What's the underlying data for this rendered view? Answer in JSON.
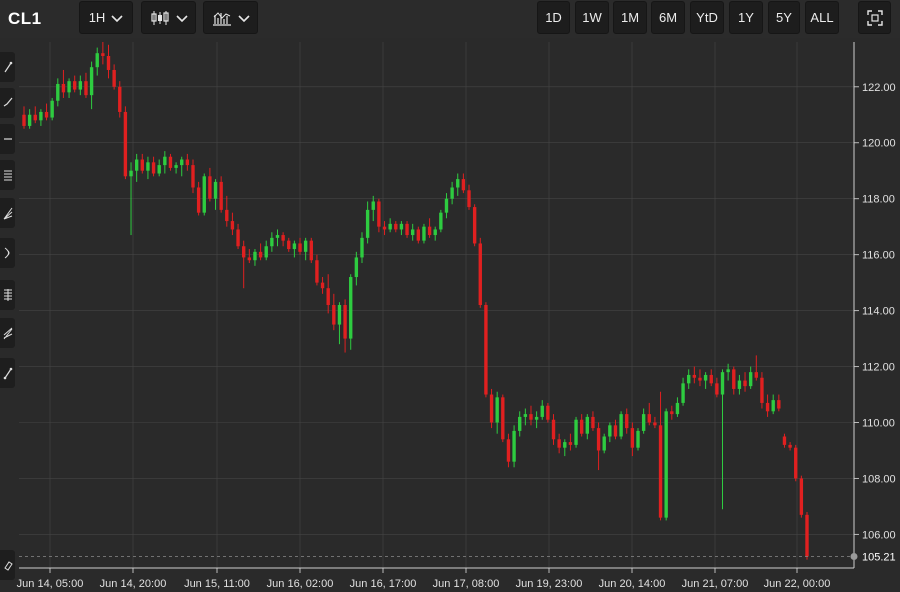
{
  "header": {
    "symbol": "CL1",
    "interval": "1H",
    "chart_type_icon": "candlestick-icon",
    "indicators_icon": "indicators-icon",
    "ranges": [
      "1D",
      "1W",
      "1M",
      "6M",
      "YtD",
      "1Y",
      "5Y",
      "ALL"
    ],
    "fullscreen_icon": "fullscreen-icon"
  },
  "sidebar": {
    "tools": [
      "line-tool-icon",
      "ray-tool-icon",
      "horizontal-line-icon",
      "pitchfork-icon",
      "fib-fan-icon",
      "arc-icon",
      "fib-retracement-icon",
      "fib-extension-icon",
      "fib-time-icon",
      "eraser-icon"
    ]
  },
  "colors": {
    "background": "#2a2a2a",
    "up": "#2ecc40",
    "down": "#e02020",
    "grid": "#454545",
    "last_price_line": "#8a8a8a"
  },
  "chart_data": {
    "type": "candlestick",
    "symbol": "CL1",
    "interval": "1H",
    "ylim": [
      104.8,
      123.6
    ],
    "y_ticks": [
      106,
      108,
      110,
      112,
      114,
      116,
      118,
      120,
      122
    ],
    "y_tick_labels": [
      "106.00",
      "108.00",
      "110.00",
      "112.00",
      "114.00",
      "116.00",
      "118.00",
      "120.00",
      "122.00"
    ],
    "x_tick_labels": [
      "Jun 14, 05:00",
      "Jun 14, 20:00",
      "Jun 15, 11:00",
      "Jun 16, 02:00",
      "Jun 16, 17:00",
      "Jun 17, 08:00",
      "Jun 19, 23:00",
      "Jun 20, 14:00",
      "Jun 21, 07:00",
      "Jun 22, 00:00"
    ],
    "last_price": 105.21,
    "last_price_label": "105.21",
    "grid": true,
    "candles": [
      [
        121.0,
        121.3,
        120.5,
        120.6
      ],
      [
        120.6,
        121.2,
        120.5,
        121.0
      ],
      [
        121.0,
        121.3,
        120.7,
        120.8
      ],
      [
        120.8,
        121.2,
        120.6,
        121.1
      ],
      [
        121.1,
        121.4,
        120.8,
        120.9
      ],
      [
        120.9,
        121.6,
        120.8,
        121.5
      ],
      [
        121.5,
        122.3,
        121.3,
        122.1
      ],
      [
        122.1,
        122.6,
        121.6,
        121.8
      ],
      [
        121.8,
        122.3,
        121.6,
        122.2
      ],
      [
        122.2,
        122.4,
        121.8,
        121.9
      ],
      [
        121.9,
        122.4,
        121.7,
        122.2
      ],
      [
        122.2,
        122.5,
        121.6,
        121.7
      ],
      [
        121.7,
        122.9,
        121.2,
        122.7
      ],
      [
        122.7,
        123.4,
        122.4,
        123.2
      ],
      [
        123.2,
        123.6,
        122.8,
        123.1
      ],
      [
        123.1,
        123.5,
        122.3,
        122.6
      ],
      [
        122.6,
        122.8,
        121.9,
        122.0
      ],
      [
        122.0,
        122.2,
        120.9,
        121.1
      ],
      [
        121.1,
        121.3,
        118.7,
        118.8
      ],
      [
        118.8,
        119.3,
        116.7,
        119.0
      ],
      [
        119.0,
        119.6,
        118.6,
        119.4
      ],
      [
        119.4,
        119.6,
        118.9,
        119.0
      ],
      [
        119.0,
        119.5,
        118.7,
        119.3
      ],
      [
        119.3,
        119.5,
        118.8,
        118.9
      ],
      [
        118.9,
        119.4,
        118.8,
        119.2
      ],
      [
        119.2,
        119.7,
        118.9,
        119.5
      ],
      [
        119.5,
        119.6,
        119.0,
        119.1
      ],
      [
        119.1,
        119.3,
        118.9,
        119.2
      ],
      [
        119.2,
        119.5,
        118.8,
        119.4
      ],
      [
        119.4,
        119.6,
        119.0,
        119.2
      ],
      [
        119.2,
        119.4,
        118.2,
        118.4
      ],
      [
        118.4,
        118.6,
        117.4,
        117.5
      ],
      [
        117.5,
        118.9,
        117.4,
        118.8
      ],
      [
        118.8,
        119.1,
        117.9,
        118.0
      ],
      [
        118.0,
        118.7,
        117.6,
        118.6
      ],
      [
        118.6,
        118.8,
        117.5,
        117.6
      ],
      [
        117.6,
        118.1,
        117.0,
        117.2
      ],
      [
        117.2,
        117.5,
        116.7,
        116.9
      ],
      [
        116.9,
        117.1,
        116.2,
        116.3
      ],
      [
        116.3,
        116.5,
        114.8,
        115.9
      ],
      [
        115.9,
        116.2,
        115.7,
        115.8
      ],
      [
        115.8,
        116.2,
        115.6,
        116.1
      ],
      [
        116.1,
        116.4,
        115.8,
        115.9
      ],
      [
        115.9,
        116.5,
        115.8,
        116.3
      ],
      [
        116.3,
        116.8,
        116.1,
        116.6
      ],
      [
        116.6,
        116.9,
        116.3,
        116.7
      ],
      [
        116.7,
        116.8,
        116.3,
        116.5
      ],
      [
        116.5,
        116.6,
        116.1,
        116.2
      ],
      [
        116.2,
        116.5,
        115.9,
        116.4
      ],
      [
        116.4,
        116.6,
        116.0,
        116.1
      ],
      [
        116.1,
        116.6,
        115.8,
        116.5
      ],
      [
        116.5,
        116.6,
        115.7,
        115.8
      ],
      [
        115.8,
        116.0,
        114.9,
        115.0
      ],
      [
        115.0,
        115.2,
        114.6,
        114.8
      ],
      [
        114.8,
        115.3,
        113.9,
        114.2
      ],
      [
        114.2,
        114.6,
        113.3,
        113.5
      ],
      [
        113.5,
        114.3,
        112.8,
        114.2
      ],
      [
        114.2,
        114.4,
        112.5,
        113.0
      ],
      [
        113.0,
        115.3,
        112.6,
        115.2
      ],
      [
        115.2,
        116.1,
        114.9,
        115.9
      ],
      [
        115.9,
        116.8,
        115.7,
        116.6
      ],
      [
        116.6,
        117.9,
        116.4,
        117.6
      ],
      [
        117.6,
        118.1,
        117.2,
        117.9
      ],
      [
        117.9,
        118.0,
        116.8,
        117.0
      ],
      [
        117.0,
        117.2,
        116.7,
        116.9
      ],
      [
        116.9,
        117.3,
        116.8,
        117.1
      ],
      [
        117.1,
        117.2,
        116.8,
        116.9
      ],
      [
        116.9,
        117.2,
        116.7,
        117.1
      ],
      [
        117.1,
        117.2,
        116.6,
        116.7
      ],
      [
        116.7,
        117.1,
        116.5,
        116.9
      ],
      [
        116.9,
        117.0,
        116.4,
        116.5
      ],
      [
        116.5,
        117.1,
        116.4,
        117.0
      ],
      [
        117.0,
        117.3,
        116.6,
        116.7
      ],
      [
        116.7,
        117.0,
        116.5,
        116.9
      ],
      [
        116.9,
        117.6,
        116.8,
        117.5
      ],
      [
        117.5,
        118.2,
        117.3,
        118.0
      ],
      [
        118.0,
        118.6,
        117.8,
        118.4
      ],
      [
        118.4,
        118.9,
        118.1,
        118.7
      ],
      [
        118.7,
        118.9,
        118.2,
        118.3
      ],
      [
        118.3,
        118.5,
        117.6,
        117.7
      ],
      [
        117.7,
        117.8,
        116.3,
        116.4
      ],
      [
        116.4,
        116.6,
        114.1,
        114.2
      ],
      [
        114.2,
        114.3,
        110.9,
        111.0
      ],
      [
        111.0,
        111.2,
        109.8,
        110.0
      ],
      [
        110.0,
        111.1,
        109.6,
        110.9
      ],
      [
        110.9,
        111.0,
        109.3,
        109.4
      ],
      [
        109.4,
        109.6,
        108.4,
        108.6
      ],
      [
        108.6,
        109.9,
        108.4,
        109.7
      ],
      [
        109.7,
        110.4,
        109.5,
        110.2
      ],
      [
        110.2,
        110.5,
        109.9,
        110.3
      ],
      [
        110.3,
        110.6,
        109.9,
        110.1
      ],
      [
        110.1,
        110.4,
        109.8,
        110.2
      ],
      [
        110.2,
        110.8,
        110.1,
        110.6
      ],
      [
        110.6,
        110.7,
        110.0,
        110.1
      ],
      [
        110.1,
        110.3,
        109.2,
        109.4
      ],
      [
        109.4,
        109.6,
        108.9,
        109.1
      ],
      [
        109.1,
        109.4,
        108.8,
        109.3
      ],
      [
        109.3,
        109.6,
        109.0,
        109.2
      ],
      [
        109.2,
        110.2,
        109.1,
        110.1
      ],
      [
        110.1,
        110.3,
        109.5,
        109.6
      ],
      [
        109.6,
        110.3,
        109.4,
        110.2
      ],
      [
        110.2,
        110.4,
        109.7,
        109.8
      ],
      [
        109.8,
        110.0,
        108.3,
        109.0
      ],
      [
        109.0,
        109.6,
        108.9,
        109.5
      ],
      [
        109.5,
        110.0,
        109.3,
        109.9
      ],
      [
        109.9,
        110.1,
        109.4,
        109.5
      ],
      [
        109.5,
        110.4,
        109.4,
        110.3
      ],
      [
        110.3,
        110.5,
        109.6,
        109.8
      ],
      [
        109.8,
        110.0,
        108.8,
        109.1
      ],
      [
        109.1,
        109.8,
        109.0,
        109.7
      ],
      [
        109.7,
        110.5,
        109.6,
        110.3
      ],
      [
        110.3,
        110.7,
        109.9,
        110.0
      ],
      [
        110.0,
        110.2,
        109.8,
        109.9
      ],
      [
        109.9,
        111.1,
        106.5,
        106.6
      ],
      [
        106.6,
        110.5,
        106.5,
        110.4
      ],
      [
        110.4,
        110.6,
        110.1,
        110.3
      ],
      [
        110.3,
        110.9,
        110.2,
        110.7
      ],
      [
        110.7,
        111.6,
        110.6,
        111.4
      ],
      [
        111.4,
        111.9,
        111.2,
        111.7
      ],
      [
        111.7,
        112.0,
        111.4,
        111.6
      ],
      [
        111.6,
        111.9,
        111.3,
        111.5
      ],
      [
        111.5,
        111.8,
        111.2,
        111.7
      ],
      [
        111.7,
        111.9,
        111.3,
        111.4
      ],
      [
        111.4,
        111.6,
        110.9,
        111.0
      ],
      [
        111.0,
        111.9,
        106.9,
        111.8
      ],
      [
        111.8,
        112.1,
        111.5,
        111.9
      ],
      [
        111.9,
        112.0,
        111.0,
        111.2
      ],
      [
        111.2,
        111.7,
        111.0,
        111.5
      ],
      [
        111.5,
        111.8,
        111.1,
        111.3
      ],
      [
        111.3,
        112.0,
        111.2,
        111.8
      ],
      [
        111.8,
        112.4,
        111.5,
        111.6
      ],
      [
        111.6,
        111.8,
        110.5,
        110.7
      ],
      [
        110.7,
        111.0,
        110.2,
        110.4
      ],
      [
        110.4,
        111.0,
        110.3,
        110.8
      ],
      [
        110.8,
        111.0,
        110.4,
        110.5
      ],
      [
        109.5,
        109.6,
        109.1,
        109.2
      ],
      [
        109.2,
        109.3,
        109.0,
        109.1
      ],
      [
        109.1,
        109.2,
        107.9,
        108.0
      ],
      [
        108.0,
        108.1,
        106.6,
        106.7
      ],
      [
        106.7,
        106.8,
        105.1,
        105.21
      ]
    ]
  }
}
